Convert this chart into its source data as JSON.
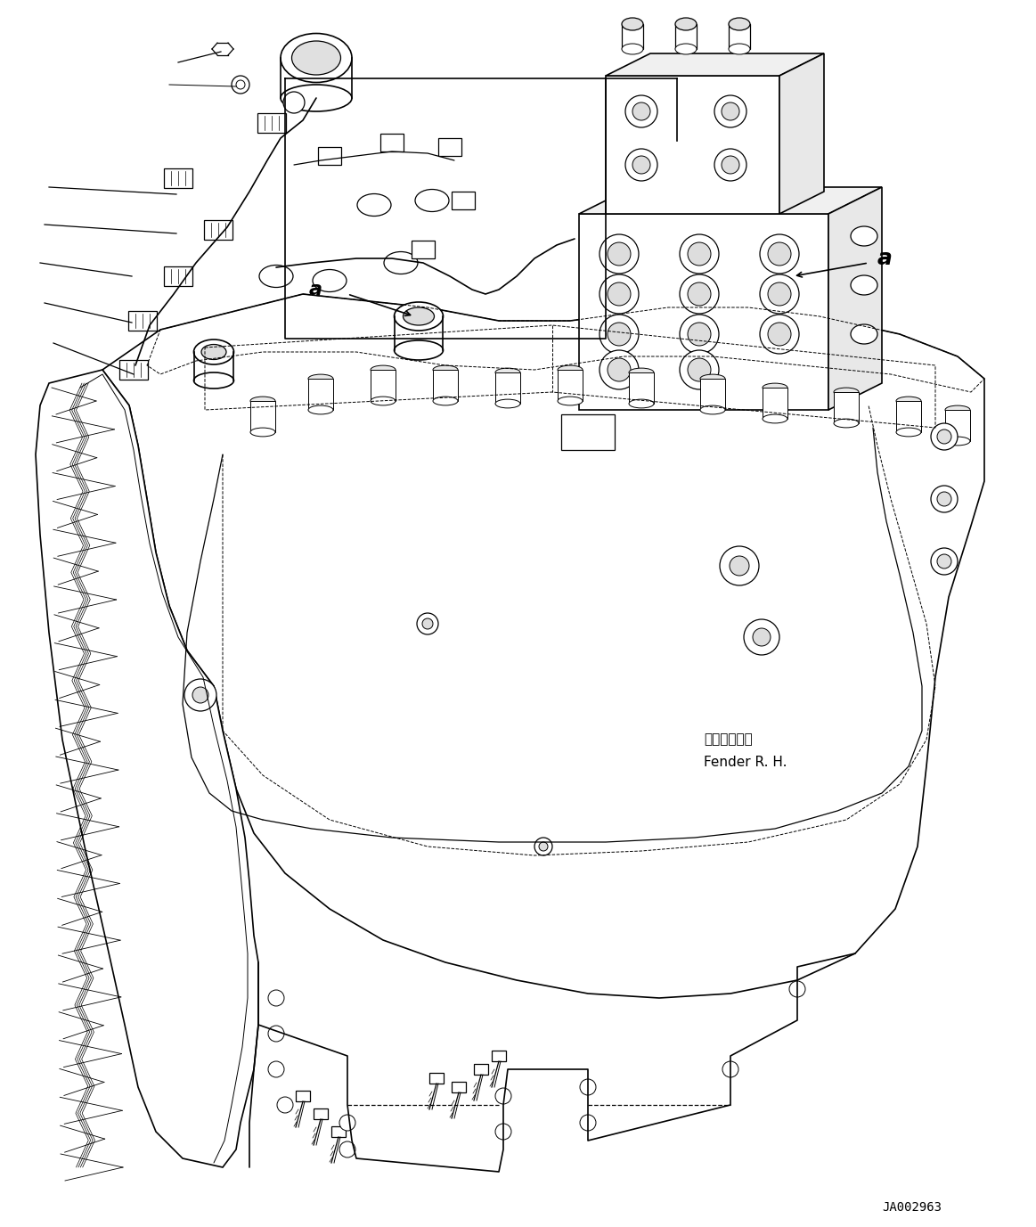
{
  "background_color": "#ffffff",
  "line_color": "#000000",
  "figure_width": 11.63,
  "figure_height": 13.77,
  "dpi": 100,
  "label_fender_ja": "フェンダ　右",
  "label_fender_en": "Fender R. H.",
  "label_a": "a",
  "label_code": "JA002963",
  "text_color": "#000000",
  "lw_main": 1.2,
  "lw_thin": 0.7,
  "lw_med": 0.9
}
